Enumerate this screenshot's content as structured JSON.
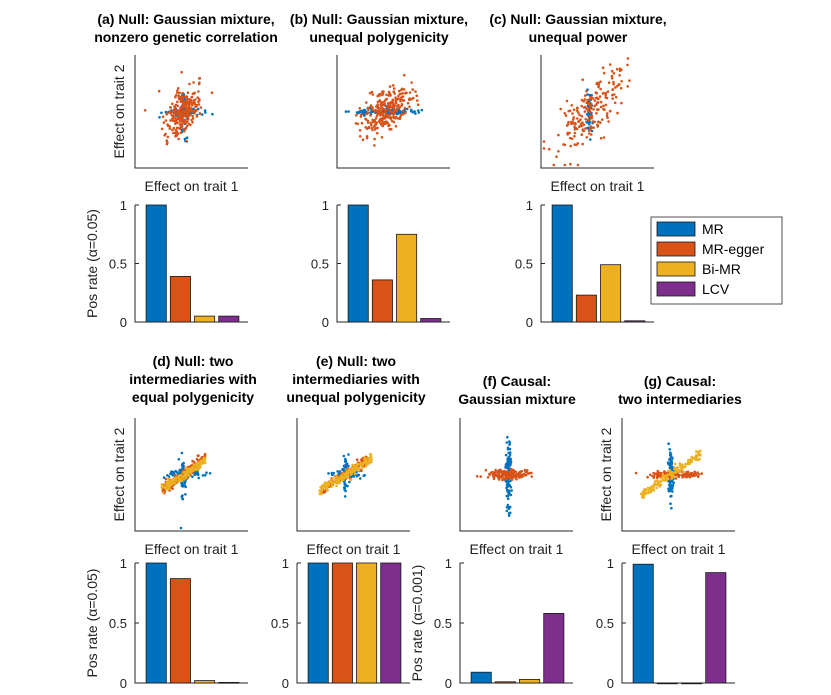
{
  "legend": {
    "items": [
      {
        "label": "MR",
        "color": "#0072BD"
      },
      {
        "label": "MR-egger",
        "color": "#D95319"
      },
      {
        "label": "Bi-MR",
        "color": "#EDB120"
      },
      {
        "label": "LCV",
        "color": "#7E2F8E"
      }
    ]
  },
  "chart_data": [
    {
      "type": "bar",
      "panel": "a",
      "title": [
        "(a) Null: Gaussian mixture,",
        "nonzero genetic correlation"
      ],
      "scatter_xlabel": "Effect on trait 1",
      "scatter_ylabel": "Effect on trait 2",
      "categories": [
        "MR",
        "MR-egger",
        "Bi-MR",
        "LCV"
      ],
      "values": [
        1.0,
        0.39,
        0.05,
        0.05
      ],
      "ylabel": "Pos rate (α=0.05)",
      "ylim": [
        0,
        1
      ],
      "yticks": [
        "0",
        "0.5",
        "1"
      ]
    },
    {
      "type": "bar",
      "panel": "b",
      "title": [
        "(b) Null: Gaussian mixture,",
        "unequal polygenicity"
      ],
      "scatter_xlabel": "",
      "scatter_ylabel": "",
      "categories": [
        "MR",
        "MR-egger",
        "Bi-MR",
        "LCV"
      ],
      "values": [
        1.0,
        0.36,
        0.75,
        0.03
      ],
      "ylabel": "",
      "ylim": [
        0,
        1
      ],
      "yticks": [
        "0",
        "0.5",
        "1"
      ]
    },
    {
      "type": "bar",
      "panel": "c",
      "title": [
        "(c) Null: Gaussian mixture,",
        "unequal power"
      ],
      "scatter_xlabel": "Effect on trait 1",
      "scatter_ylabel": "",
      "categories": [
        "MR",
        "MR-egger",
        "Bi-MR",
        "LCV"
      ],
      "values": [
        1.0,
        0.23,
        0.49,
        0.01
      ],
      "ylabel": "",
      "ylim": [
        0,
        1
      ],
      "yticks": [
        "0",
        "0.5",
        "1"
      ]
    },
    {
      "type": "bar",
      "panel": "d",
      "title": [
        "(d) Null: two",
        "intermediaries with",
        "equal polygenicity"
      ],
      "scatter_xlabel": "Effect on trait 1",
      "scatter_ylabel": "Effect on trait 2",
      "categories": [
        "MR",
        "MR-egger",
        "Bi-MR",
        "LCV"
      ],
      "values": [
        1.0,
        0.87,
        0.02,
        0.005
      ],
      "ylabel": "Pos rate (α=0.05)",
      "ylim": [
        0,
        1
      ],
      "yticks": [
        "0",
        "0.5",
        "1"
      ]
    },
    {
      "type": "bar",
      "panel": "e",
      "title": [
        "(e) Null: two",
        "intermediaries with",
        "unequal polygenicity"
      ],
      "scatter_xlabel": "Effect on trait 1",
      "scatter_ylabel": "",
      "categories": [
        "MR",
        "MR-egger",
        "Bi-MR",
        "LCV"
      ],
      "values": [
        1.0,
        1.0,
        1.0,
        1.0
      ],
      "ylabel": "",
      "ylim": [
        0,
        1
      ],
      "yticks": [
        "0",
        "0.5",
        "1"
      ]
    },
    {
      "type": "bar",
      "panel": "f",
      "title": [
        "(f) Causal:",
        "Gaussian mixture"
      ],
      "scatter_xlabel": "Effect on trait 1",
      "scatter_ylabel": "",
      "categories": [
        "MR",
        "MR-egger",
        "Bi-MR",
        "LCV"
      ],
      "values": [
        0.09,
        0.01,
        0.03,
        0.58
      ],
      "ylabel": "Pos rate (α=0.001)",
      "ylim": [
        0,
        1
      ],
      "yticks": [
        "0",
        "0.5",
        "1"
      ]
    },
    {
      "type": "bar",
      "panel": "g",
      "title": [
        "(g) Causal:",
        "two intermediaries"
      ],
      "scatter_xlabel": "Effect on trait 1",
      "scatter_ylabel": "Effect on trait 2",
      "categories": [
        "MR",
        "MR-egger",
        "Bi-MR",
        "LCV"
      ],
      "values": [
        0.99,
        0.0,
        0.0,
        0.92
      ],
      "ylabel": "",
      "ylim": [
        0,
        1
      ],
      "yticks": [
        "0",
        "0.5",
        "1"
      ]
    }
  ]
}
